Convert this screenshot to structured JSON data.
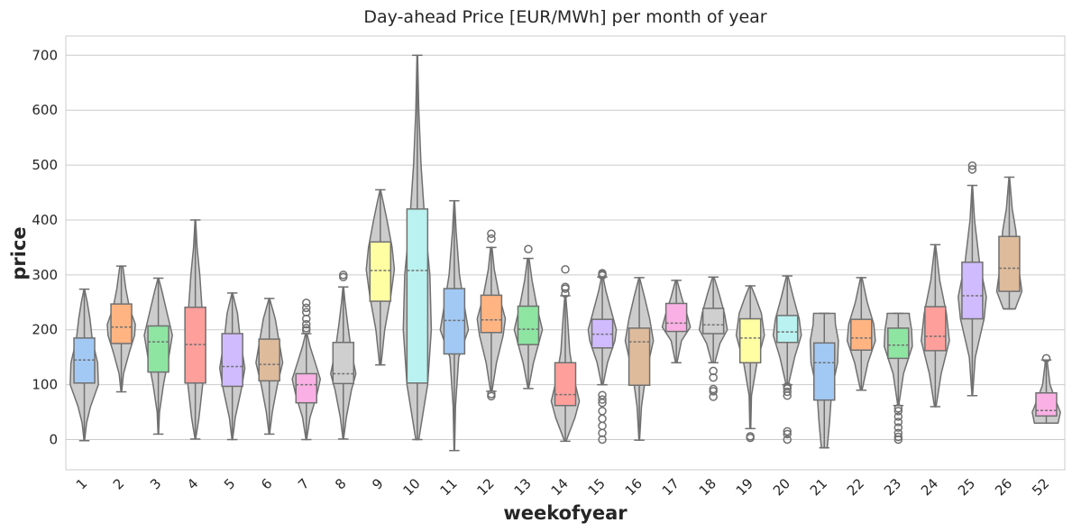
{
  "chart_data": {
    "type": "violin",
    "title": "Day-ahead Price [EUR/MWh] per month of year",
    "xlabel": "weekofyear",
    "ylabel": "price",
    "ylim": [
      -55,
      735
    ],
    "yticks": [
      0,
      100,
      200,
      300,
      400,
      500,
      600,
      700
    ],
    "grid": true,
    "violin_color": "#cccccc",
    "outline_color": "#707070",
    "box_colors": [
      "#a1c9f4",
      "#ffb482",
      "#8de5a1",
      "#ff9f9b",
      "#d0bbff",
      "#debb9b",
      "#fab0e4",
      "#cfcfcf",
      "#fffea3",
      "#b9f2f0"
    ],
    "categories": [
      "1",
      "2",
      "3",
      "4",
      "5",
      "6",
      "7",
      "8",
      "9",
      "10",
      "11",
      "12",
      "13",
      "14",
      "15",
      "16",
      "17",
      "18",
      "19",
      "20",
      "21",
      "22",
      "23",
      "24",
      "25",
      "26",
      "52"
    ],
    "series": [
      {
        "category": "1",
        "min": -2,
        "q1": 103,
        "median": 145,
        "q3": 185,
        "max": 274,
        "profile": [
          [
            -2,
            0.02
          ],
          [
            30,
            0.15
          ],
          [
            60,
            0.42
          ],
          [
            100,
            0.95
          ],
          [
            140,
            0.9
          ],
          [
            180,
            0.55
          ],
          [
            220,
            0.38
          ],
          [
            250,
            0.2
          ],
          [
            274,
            0.02
          ]
        ],
        "outliers": []
      },
      {
        "category": "2",
        "min": 87,
        "q1": 175,
        "median": 205,
        "q3": 247,
        "max": 316,
        "profile": [
          [
            87,
            0.02
          ],
          [
            120,
            0.15
          ],
          [
            160,
            0.55
          ],
          [
            190,
            0.9
          ],
          [
            210,
            0.95
          ],
          [
            240,
            0.55
          ],
          [
            275,
            0.3
          ],
          [
            300,
            0.18
          ],
          [
            316,
            0.1
          ]
        ],
        "outliers": []
      },
      {
        "category": "3",
        "min": 10,
        "q1": 123,
        "median": 178,
        "q3": 207,
        "max": 294,
        "profile": [
          [
            10,
            0.02
          ],
          [
            50,
            0.08
          ],
          [
            100,
            0.35
          ],
          [
            150,
            0.7
          ],
          [
            190,
            0.95
          ],
          [
            230,
            0.6
          ],
          [
            270,
            0.25
          ],
          [
            294,
            0.02
          ]
        ],
        "outliers": []
      },
      {
        "category": "4",
        "min": 1,
        "q1": 103,
        "median": 173,
        "q3": 241,
        "max": 400,
        "profile": [
          [
            1,
            0.02
          ],
          [
            40,
            0.25
          ],
          [
            100,
            0.5
          ],
          [
            140,
            0.6
          ],
          [
            190,
            0.55
          ],
          [
            240,
            0.45
          ],
          [
            300,
            0.3
          ],
          [
            350,
            0.12
          ],
          [
            400,
            0.02
          ]
        ],
        "outliers": []
      },
      {
        "category": "5",
        "min": 0,
        "q1": 97,
        "median": 133,
        "q3": 193,
        "max": 267,
        "profile": [
          [
            0,
            0.02
          ],
          [
            40,
            0.2
          ],
          [
            90,
            0.6
          ],
          [
            130,
            0.85
          ],
          [
            180,
            0.55
          ],
          [
            230,
            0.35
          ],
          [
            267,
            0.02
          ]
        ],
        "outliers": []
      },
      {
        "category": "6",
        "min": 10,
        "q1": 107,
        "median": 137,
        "q3": 183,
        "max": 257,
        "profile": [
          [
            10,
            0.02
          ],
          [
            50,
            0.2
          ],
          [
            100,
            0.55
          ],
          [
            140,
            0.9
          ],
          [
            180,
            0.65
          ],
          [
            220,
            0.4
          ],
          [
            257,
            0.02
          ]
        ],
        "outliers": []
      },
      {
        "category": "7",
        "min": 0,
        "q1": 67,
        "median": 100,
        "q3": 120,
        "max": 193,
        "profile": [
          [
            0,
            0.02
          ],
          [
            40,
            0.25
          ],
          [
            80,
            0.7
          ],
          [
            110,
            0.95
          ],
          [
            140,
            0.6
          ],
          [
            170,
            0.25
          ],
          [
            193,
            0.05
          ]
        ],
        "outliers": [
          199,
          203,
          210,
          220,
          232,
          240,
          249
        ]
      },
      {
        "category": "8",
        "min": 1,
        "q1": 102,
        "median": 120,
        "q3": 177,
        "max": 278,
        "profile": [
          [
            1,
            0.02
          ],
          [
            40,
            0.2
          ],
          [
            90,
            0.55
          ],
          [
            120,
            0.85
          ],
          [
            160,
            0.55
          ],
          [
            210,
            0.3
          ],
          [
            250,
            0.12
          ],
          [
            278,
            0.02
          ]
        ],
        "outliers": [
          296,
          300
        ]
      },
      {
        "category": "9",
        "min": 136,
        "q1": 252,
        "median": 308,
        "q3": 360,
        "max": 455,
        "profile": [
          [
            136,
            0.05
          ],
          [
            200,
            0.3
          ],
          [
            260,
            0.7
          ],
          [
            310,
            0.95
          ],
          [
            350,
            0.8
          ],
          [
            400,
            0.45
          ],
          [
            430,
            0.22
          ],
          [
            455,
            0.02
          ]
        ],
        "outliers": []
      },
      {
        "category": "10",
        "min": 0,
        "q1": 103,
        "median": 308,
        "q3": 420,
        "max": 700,
        "profile": [
          [
            0,
            0.1
          ],
          [
            100,
            0.7
          ],
          [
            200,
            0.95
          ],
          [
            300,
            0.85
          ],
          [
            400,
            0.5
          ],
          [
            500,
            0.25
          ],
          [
            600,
            0.1
          ],
          [
            700,
            0.02
          ]
        ],
        "outliers": []
      },
      {
        "category": "11",
        "min": -20,
        "q1": 156,
        "median": 217,
        "q3": 275,
        "max": 435,
        "profile": [
          [
            -20,
            0.02
          ],
          [
            60,
            0.08
          ],
          [
            150,
            0.3
          ],
          [
            200,
            0.95
          ],
          [
            240,
            0.7
          ],
          [
            300,
            0.35
          ],
          [
            380,
            0.12
          ],
          [
            435,
            0.02
          ]
        ],
        "outliers": []
      },
      {
        "category": "12",
        "min": 88,
        "q1": 195,
        "median": 218,
        "q3": 263,
        "max": 350,
        "profile": [
          [
            88,
            0.05
          ],
          [
            140,
            0.35
          ],
          [
            190,
            0.8
          ],
          [
            220,
            0.95
          ],
          [
            260,
            0.55
          ],
          [
            310,
            0.2
          ],
          [
            350,
            0.05
          ]
        ],
        "outliers": [
          79,
          83,
          366,
          375
        ]
      },
      {
        "category": "13",
        "min": 93,
        "q1": 173,
        "median": 201,
        "q3": 243,
        "max": 330,
        "profile": [
          [
            93,
            0.02
          ],
          [
            140,
            0.35
          ],
          [
            180,
            0.75
          ],
          [
            200,
            0.95
          ],
          [
            240,
            0.6
          ],
          [
            290,
            0.25
          ],
          [
            330,
            0.05
          ]
        ],
        "outliers": [
          347
        ]
      },
      {
        "category": "14",
        "min": -3,
        "q1": 62,
        "median": 82,
        "q3": 140,
        "max": 262,
        "profile": [
          [
            -3,
            0.05
          ],
          [
            40,
            0.65
          ],
          [
            70,
            0.95
          ],
          [
            110,
            0.6
          ],
          [
            160,
            0.3
          ],
          [
            220,
            0.15
          ],
          [
            262,
            0.03
          ]
        ],
        "outliers": [
          266,
          275,
          278,
          310
        ]
      },
      {
        "category": "15",
        "min": 100,
        "q1": 167,
        "median": 192,
        "q3": 219,
        "max": 296,
        "profile": [
          [
            100,
            0.05
          ],
          [
            140,
            0.35
          ],
          [
            180,
            0.85
          ],
          [
            200,
            0.95
          ],
          [
            230,
            0.65
          ],
          [
            270,
            0.25
          ],
          [
            296,
            0.05
          ]
        ],
        "outliers": [
          0,
          12,
          25,
          38,
          52,
          67,
          73,
          81,
          299,
          301,
          303
        ]
      },
      {
        "category": "16",
        "min": -1,
        "q1": 99,
        "median": 178,
        "q3": 203,
        "max": 295,
        "profile": [
          [
            -1,
            0.02
          ],
          [
            60,
            0.15
          ],
          [
            120,
            0.45
          ],
          [
            180,
            0.95
          ],
          [
            220,
            0.7
          ],
          [
            260,
            0.35
          ],
          [
            295,
            0.02
          ]
        ],
        "outliers": []
      },
      {
        "category": "17",
        "min": 140,
        "q1": 197,
        "median": 212,
        "q3": 248,
        "max": 290,
        "profile": [
          [
            140,
            0.05
          ],
          [
            180,
            0.35
          ],
          [
            205,
            0.95
          ],
          [
            230,
            0.7
          ],
          [
            260,
            0.35
          ],
          [
            290,
            0.05
          ]
        ],
        "outliers": []
      },
      {
        "category": "18",
        "min": 140,
        "q1": 193,
        "median": 209,
        "q3": 239,
        "max": 296,
        "profile": [
          [
            140,
            0.1
          ],
          [
            175,
            0.45
          ],
          [
            200,
            0.95
          ],
          [
            230,
            0.75
          ],
          [
            265,
            0.4
          ],
          [
            296,
            0.05
          ]
        ],
        "outliers": [
          78,
          88,
          92,
          113,
          125
        ]
      },
      {
        "category": "19",
        "min": 20,
        "q1": 140,
        "median": 185,
        "q3": 220,
        "max": 280,
        "profile": [
          [
            20,
            0.03
          ],
          [
            80,
            0.08
          ],
          [
            140,
            0.45
          ],
          [
            190,
            0.95
          ],
          [
            230,
            0.75
          ],
          [
            260,
            0.35
          ],
          [
            280,
            0.05
          ]
        ],
        "outliers": [
          3,
          6
        ]
      },
      {
        "category": "20",
        "min": 100,
        "q1": 177,
        "median": 196,
        "q3": 226,
        "max": 298,
        "profile": [
          [
            100,
            0.08
          ],
          [
            150,
            0.5
          ],
          [
            190,
            0.95
          ],
          [
            220,
            0.8
          ],
          [
            260,
            0.4
          ],
          [
            298,
            0.05
          ]
        ],
        "outliers": [
          0,
          10,
          15,
          80,
          87,
          93,
          97
        ]
      },
      {
        "category": "21",
        "min": -15,
        "q1": 72,
        "median": 140,
        "q3": 176,
        "max": 230,
        "profile": [
          [
            -15,
            0.2
          ],
          [
            30,
            0.35
          ],
          [
            90,
            0.5
          ],
          [
            140,
            0.9
          ],
          [
            180,
            0.95
          ],
          [
            210,
            0.75
          ],
          [
            230,
            0.72
          ]
        ],
        "outliers": []
      },
      {
        "category": "22",
        "min": 90,
        "q1": 163,
        "median": 185,
        "q3": 219,
        "max": 295,
        "profile": [
          [
            90,
            0.05
          ],
          [
            140,
            0.45
          ],
          [
            180,
            0.95
          ],
          [
            210,
            0.85
          ],
          [
            250,
            0.4
          ],
          [
            295,
            0.05
          ]
        ],
        "outliers": []
      },
      {
        "category": "23",
        "min": 62,
        "q1": 148,
        "median": 172,
        "q3": 203,
        "max": 230,
        "profile": [
          [
            62,
            0.03
          ],
          [
            120,
            0.35
          ],
          [
            170,
            0.95
          ],
          [
            200,
            0.9
          ],
          [
            225,
            0.75
          ],
          [
            230,
            0.75
          ]
        ],
        "outliers": [
          0,
          5,
          12,
          22,
          32,
          42,
          52,
          57
        ]
      },
      {
        "category": "24",
        "min": 60,
        "q1": 162,
        "median": 188,
        "q3": 242,
        "max": 355,
        "profile": [
          [
            60,
            0.05
          ],
          [
            120,
            0.4
          ],
          [
            180,
            0.95
          ],
          [
            230,
            0.75
          ],
          [
            290,
            0.3
          ],
          [
            355,
            0.02
          ]
        ],
        "outliers": []
      },
      {
        "category": "25",
        "min": 80,
        "q1": 220,
        "median": 262,
        "q3": 323,
        "max": 463,
        "profile": [
          [
            80,
            0.02
          ],
          [
            150,
            0.2
          ],
          [
            220,
            0.8
          ],
          [
            260,
            0.95
          ],
          [
            320,
            0.5
          ],
          [
            400,
            0.15
          ],
          [
            463,
            0.02
          ]
        ],
        "outliers": [
          492,
          499
        ]
      },
      {
        "category": "26",
        "min": 238,
        "q1": 270,
        "median": 312,
        "q3": 370,
        "max": 478,
        "profile": [
          [
            238,
            0.4
          ],
          [
            270,
            0.85
          ],
          [
            300,
            0.7
          ],
          [
            340,
            0.55
          ],
          [
            380,
            0.45
          ],
          [
            420,
            0.2
          ],
          [
            478,
            0.02
          ]
        ],
        "outliers": []
      },
      {
        "category": "52",
        "min": 30,
        "q1": 43,
        "median": 53,
        "q3": 85,
        "max": 145,
        "profile": [
          [
            30,
            0.8
          ],
          [
            50,
            0.95
          ],
          [
            70,
            0.65
          ],
          [
            100,
            0.25
          ],
          [
            145,
            0.05
          ]
        ],
        "outliers": [
          148
        ]
      }
    ]
  }
}
